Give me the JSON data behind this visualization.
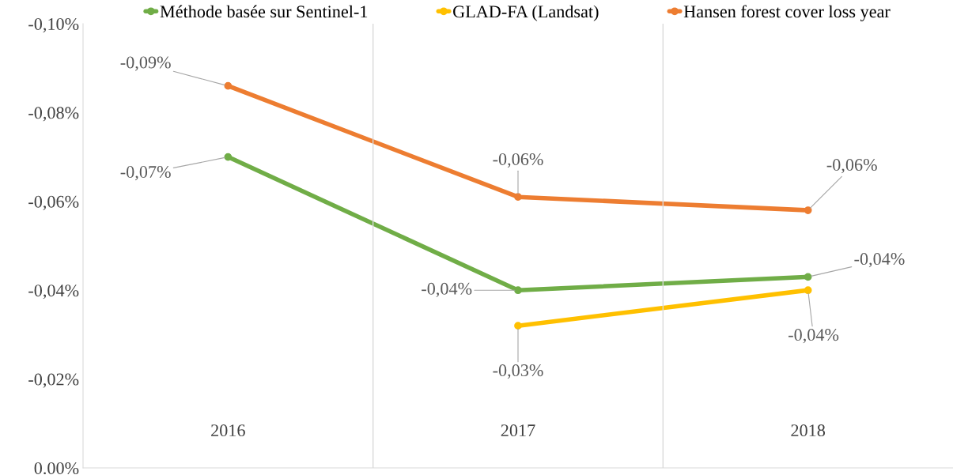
{
  "chart_data": {
    "type": "line",
    "categories": [
      "2016",
      "2017",
      "2018"
    ],
    "series": [
      {
        "name": "Méthode basée sur Sentinel-1",
        "color": "#70ad47",
        "values": [
          -0.07,
          -0.04,
          -0.043
        ],
        "value_labels": [
          "-0,07%",
          "-0,04%",
          "-0,04%"
        ]
      },
      {
        "name": "GLAD-FA (Landsat)",
        "color": "#ffc000",
        "values": [
          null,
          -0.032,
          -0.04
        ],
        "value_labels": [
          null,
          "-0,03%",
          "-0,04%"
        ]
      },
      {
        "name": "Hansen forest cover loss year",
        "color": "#ed7d31",
        "values": [
          -0.086,
          -0.061,
          -0.058
        ],
        "value_labels": [
          "-0,09%",
          "-0,06%",
          "-0,06%"
        ]
      }
    ],
    "ylim": [
      0,
      -0.1
    ],
    "yticks": [
      {
        "value": 0,
        "label": "0.00%"
      },
      {
        "value": -0.02,
        "label": "-0,02%"
      },
      {
        "value": -0.04,
        "label": "-0,04%"
      },
      {
        "value": -0.06,
        "label": "-0,06%"
      },
      {
        "value": -0.08,
        "label": "-0,08%"
      },
      {
        "value": -0.1,
        "label": "-0,10%"
      }
    ],
    "grid": "x",
    "legend": "top",
    "marker": "circle",
    "line_style": "solid"
  }
}
